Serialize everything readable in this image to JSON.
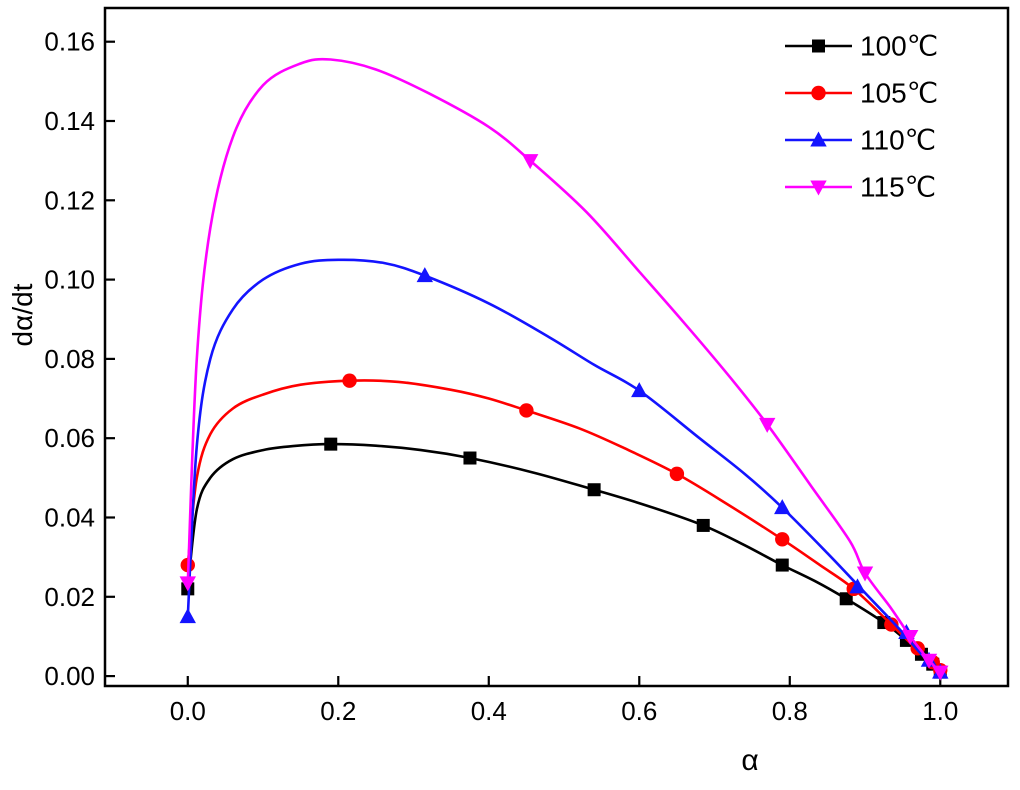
{
  "chart_data": {
    "type": "line",
    "title": "",
    "xlabel": "α",
    "ylabel": "dα/dt",
    "xlim": [
      -0.11,
      1.09
    ],
    "ylim": [
      -0.0025,
      0.1685
    ],
    "xticks": [
      0.0,
      0.2,
      0.4,
      0.6,
      0.8,
      1.0
    ],
    "xtick_labels": [
      "0.0",
      "0.2",
      "0.4",
      "0.6",
      "0.8",
      "1.0"
    ],
    "yticks": [
      0.0,
      0.02,
      0.04,
      0.06,
      0.08,
      0.1,
      0.12,
      0.14,
      0.16
    ],
    "ytick_labels": [
      "0.00",
      "0.02",
      "0.04",
      "0.06",
      "0.08",
      "0.10",
      "0.12",
      "0.14",
      "0.16"
    ],
    "grid": false,
    "legend_position": "top-right-inside",
    "axis_color": "#000000",
    "background_color": "#ffffff",
    "series": [
      {
        "name": "100℃",
        "color": "#000000",
        "marker": "square",
        "curve": [
          [
            0,
            0.022
          ],
          [
            0.012,
            0.042
          ],
          [
            0.03,
            0.05
          ],
          [
            0.06,
            0.0547
          ],
          [
            0.1,
            0.057
          ],
          [
            0.14,
            0.058
          ],
          [
            0.19,
            0.0585
          ],
          [
            0.25,
            0.0581
          ],
          [
            0.31,
            0.057
          ],
          [
            0.375,
            0.055
          ],
          [
            0.46,
            0.0513
          ],
          [
            0.54,
            0.047
          ],
          [
            0.61,
            0.043
          ],
          [
            0.685,
            0.038
          ],
          [
            0.74,
            0.033
          ],
          [
            0.79,
            0.028
          ],
          [
            0.835,
            0.0238
          ],
          [
            0.875,
            0.0195
          ],
          [
            0.925,
            0.0135
          ],
          [
            0.955,
            0.009
          ],
          [
            0.975,
            0.0055
          ],
          [
            1.0,
            0.001
          ]
        ],
        "points": [
          [
            0,
            0.022
          ],
          [
            0.19,
            0.0585
          ],
          [
            0.375,
            0.055
          ],
          [
            0.54,
            0.047
          ],
          [
            0.685,
            0.038
          ],
          [
            0.79,
            0.028
          ],
          [
            0.875,
            0.0195
          ],
          [
            0.925,
            0.0135
          ],
          [
            0.955,
            0.009
          ],
          [
            0.975,
            0.0055
          ],
          [
            0.99,
            0.003
          ],
          [
            1.0,
            0.001
          ]
        ]
      },
      {
        "name": "105℃",
        "color": "#ff0000",
        "marker": "circle",
        "curve": [
          [
            0,
            0.028
          ],
          [
            0.012,
            0.05
          ],
          [
            0.03,
            0.061
          ],
          [
            0.06,
            0.0675
          ],
          [
            0.1,
            0.071
          ],
          [
            0.15,
            0.0735
          ],
          [
            0.215,
            0.0745
          ],
          [
            0.28,
            0.0742
          ],
          [
            0.35,
            0.0722
          ],
          [
            0.4,
            0.07
          ],
          [
            0.45,
            0.067
          ],
          [
            0.52,
            0.0625
          ],
          [
            0.58,
            0.0575
          ],
          [
            0.65,
            0.051
          ],
          [
            0.72,
            0.043
          ],
          [
            0.79,
            0.0345
          ],
          [
            0.84,
            0.028
          ],
          [
            0.885,
            0.022
          ],
          [
            0.935,
            0.013
          ],
          [
            0.965,
            0.0075
          ],
          [
            1.0,
            0.0015
          ]
        ],
        "points": [
          [
            0,
            0.028
          ],
          [
            0.215,
            0.0745
          ],
          [
            0.45,
            0.067
          ],
          [
            0.65,
            0.051
          ],
          [
            0.79,
            0.0345
          ],
          [
            0.885,
            0.022
          ],
          [
            0.935,
            0.013
          ],
          [
            0.97,
            0.007
          ],
          [
            0.99,
            0.0035
          ],
          [
            1.0,
            0.0015
          ]
        ]
      },
      {
        "name": "110℃",
        "color": "#1414ff",
        "marker": "triangle-up",
        "curve": [
          [
            0,
            0.015
          ],
          [
            0.012,
            0.058
          ],
          [
            0.03,
            0.08
          ],
          [
            0.06,
            0.0925
          ],
          [
            0.1,
            0.1
          ],
          [
            0.15,
            0.104
          ],
          [
            0.2,
            0.105
          ],
          [
            0.26,
            0.1042
          ],
          [
            0.315,
            0.101
          ],
          [
            0.4,
            0.094
          ],
          [
            0.48,
            0.0855
          ],
          [
            0.54,
            0.0785
          ],
          [
            0.6,
            0.072
          ],
          [
            0.68,
            0.06
          ],
          [
            0.74,
            0.051
          ],
          [
            0.79,
            0.0425
          ],
          [
            0.85,
            0.031
          ],
          [
            0.9,
            0.021
          ],
          [
            0.945,
            0.012
          ],
          [
            0.975,
            0.0055
          ],
          [
            1.0,
            0.001
          ]
        ],
        "points": [
          [
            0,
            0.015
          ],
          [
            0.315,
            0.101
          ],
          [
            0.6,
            0.072
          ],
          [
            0.79,
            0.0425
          ],
          [
            0.89,
            0.0225
          ],
          [
            0.955,
            0.011
          ],
          [
            0.985,
            0.004
          ],
          [
            1.0,
            0.001
          ]
        ]
      },
      {
        "name": "115℃",
        "color": "#ff00ff",
        "marker": "triangle-down",
        "curve": [
          [
            0,
            0.0235
          ],
          [
            0.012,
            0.08
          ],
          [
            0.03,
            0.113
          ],
          [
            0.06,
            0.136
          ],
          [
            0.1,
            0.149
          ],
          [
            0.15,
            0.1545
          ],
          [
            0.19,
            0.1555
          ],
          [
            0.25,
            0.153
          ],
          [
            0.32,
            0.147
          ],
          [
            0.4,
            0.1385
          ],
          [
            0.455,
            0.13
          ],
          [
            0.53,
            0.117
          ],
          [
            0.6,
            0.102
          ],
          [
            0.66,
            0.089
          ],
          [
            0.72,
            0.0755
          ],
          [
            0.77,
            0.0635
          ],
          [
            0.83,
            0.0475
          ],
          [
            0.88,
            0.034
          ],
          [
            0.9,
            0.026
          ],
          [
            0.935,
            0.017
          ],
          [
            0.96,
            0.01
          ],
          [
            0.985,
            0.004
          ],
          [
            1.0,
            0.001
          ]
        ],
        "points": [
          [
            0,
            0.0235
          ],
          [
            0.455,
            0.13
          ],
          [
            0.77,
            0.0635
          ],
          [
            0.9,
            0.026
          ],
          [
            0.96,
            0.01
          ],
          [
            0.985,
            0.004
          ],
          [
            1.0,
            0.001
          ]
        ]
      }
    ]
  }
}
